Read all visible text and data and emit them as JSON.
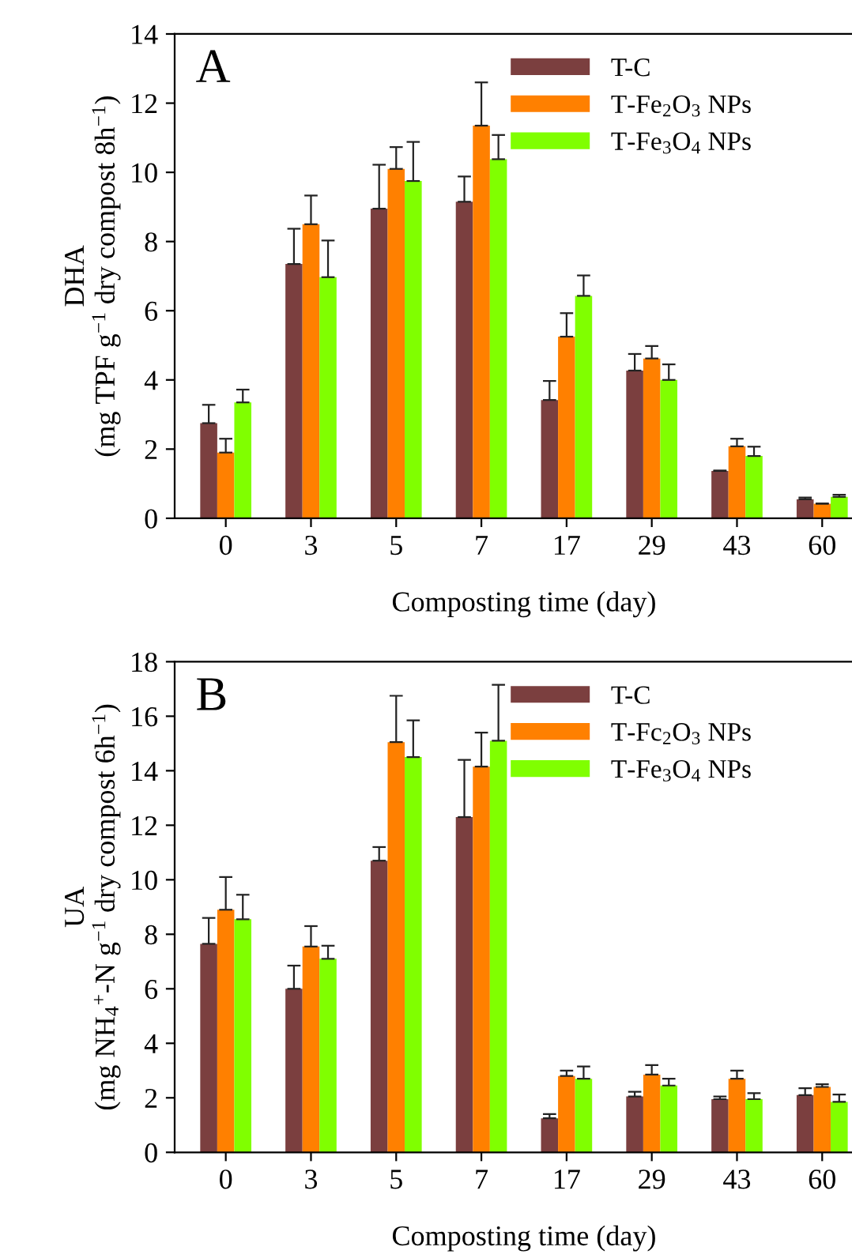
{
  "chart_data": [
    {
      "type": "bar",
      "annotations": [
        "A"
      ],
      "xlabel": "Composting time (day)",
      "ylabel": "DHA\n(mg TPF g$^{−1}$ dry compost 8h$^{−1}$)",
      "categories": [
        "0",
        "3",
        "5",
        "7",
        "17",
        "29",
        "43",
        "60"
      ],
      "ylim": [
        0,
        14
      ],
      "yticks": [
        0,
        2,
        4,
        6,
        8,
        10,
        12,
        14
      ],
      "legend": "top right",
      "grid": false,
      "series": [
        {
          "name": "T-C",
          "color": "#7b3f3f",
          "values": [
            2.75,
            7.35,
            8.95,
            9.15,
            3.42,
            4.27,
            1.37,
            0.55
          ],
          "errors": [
            [
              2.75,
              3.28
            ],
            [
              7.35,
              8.37
            ],
            [
              8.95,
              10.22
            ],
            [
              9.15,
              9.88
            ],
            [
              3.42,
              3.97
            ],
            [
              4.27,
              4.75
            ],
            [
              1.37,
              1.38
            ],
            [
              0.55,
              0.6
            ]
          ]
        },
        {
          "name": "T-Fe$_{2}$O$_{3}$ NPs",
          "color": "#ff8000",
          "values": [
            1.9,
            8.5,
            10.1,
            11.35,
            5.25,
            4.62,
            2.08,
            0.42
          ],
          "errors": [
            [
              1.9,
              2.3
            ],
            [
              8.5,
              9.33
            ],
            [
              10.1,
              10.73
            ],
            [
              11.35,
              12.6
            ],
            [
              5.25,
              5.93
            ],
            [
              4.62,
              4.98
            ],
            [
              2.08,
              2.3
            ],
            [
              0.42,
              0.43
            ]
          ]
        },
        {
          "name": "T-Fe$_{3}$O$_{4}$ NPs",
          "color": "#80ff00",
          "values": [
            3.35,
            6.97,
            9.75,
            10.38,
            6.43,
            4.0,
            1.8,
            0.62
          ],
          "errors": [
            [
              3.35,
              3.72
            ],
            [
              6.97,
              8.03
            ],
            [
              9.75,
              10.88
            ],
            [
              10.38,
              11.08
            ],
            [
              6.43,
              7.02
            ],
            [
              4.0,
              4.45
            ],
            [
              1.8,
              2.07
            ],
            [
              0.62,
              0.68
            ]
          ]
        }
      ]
    },
    {
      "type": "bar",
      "annotations": [
        "B"
      ],
      "xlabel": "Composting time (day)",
      "ylabel": "UA\n(mg NH$_{4}$$^{+}$-N g$^{−1}$ dry compost 6h$^{−1}$)",
      "categories": [
        "0",
        "3",
        "5",
        "7",
        "17",
        "29",
        "43",
        "60"
      ],
      "ylim": [
        0,
        18
      ],
      "yticks": [
        0,
        2,
        4,
        6,
        8,
        10,
        12,
        14,
        16,
        18
      ],
      "legend": "top right",
      "grid": false,
      "series": [
        {
          "name": "T-C",
          "color": "#7b3f3f",
          "values": [
            7.65,
            6.0,
            10.7,
            12.3,
            1.25,
            2.05,
            1.95,
            2.1
          ],
          "errors": [
            [
              7.65,
              8.6
            ],
            [
              6.0,
              6.85
            ],
            [
              10.7,
              11.2
            ],
            [
              12.3,
              14.4
            ],
            [
              1.25,
              1.4
            ],
            [
              2.05,
              2.22
            ],
            [
              1.95,
              2.05
            ],
            [
              2.1,
              2.35
            ]
          ]
        },
        {
          "name": "T-Fc$_{2}$O$_{3}$ NPs",
          "color": "#ff8000",
          "values": [
            8.9,
            7.55,
            15.05,
            14.15,
            2.8,
            2.85,
            2.7,
            2.4
          ],
          "errors": [
            [
              8.9,
              10.1
            ],
            [
              7.55,
              8.3
            ],
            [
              15.05,
              16.75
            ],
            [
              14.15,
              15.4
            ],
            [
              2.8,
              3.0
            ],
            [
              2.85,
              3.2
            ],
            [
              2.7,
              3.0
            ],
            [
              2.4,
              2.5
            ]
          ]
        },
        {
          "name": "T-Fe$_{3}$O$_{4}$ NPs",
          "color": "#80ff00",
          "values": [
            8.55,
            7.1,
            14.5,
            15.1,
            2.7,
            2.45,
            1.95,
            1.85
          ],
          "errors": [
            [
              8.55,
              9.45
            ],
            [
              7.1,
              7.58
            ],
            [
              14.5,
              15.85
            ],
            [
              15.1,
              17.15
            ],
            [
              2.7,
              3.15
            ],
            [
              2.45,
              2.7
            ],
            [
              1.95,
              2.17
            ],
            [
              1.85,
              2.12
            ]
          ]
        }
      ]
    }
  ]
}
